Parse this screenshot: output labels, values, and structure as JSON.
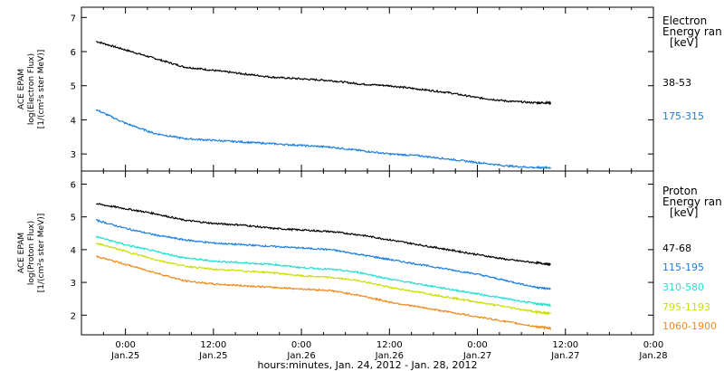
{
  "chart_data": [
    {
      "type": "line",
      "panel": "top",
      "ylabel_lines": [
        "ACE EPAM",
        "log(Electron Flux)",
        "[1/(cm²s ster MeV)]"
      ],
      "ylim": [
        2.5,
        7.3
      ],
      "yticks": [
        3,
        4,
        5,
        6,
        7
      ],
      "legend_title": [
        "Electron",
        "Energy ran",
        "[keV]"
      ],
      "grid": false,
      "series": [
        {
          "name": "38-53",
          "color": "#000000",
          "x": [
            -4,
            0,
            4,
            8,
            12,
            16,
            20,
            24,
            28,
            32,
            36,
            40,
            44,
            48,
            52,
            56,
            58
          ],
          "y": [
            6.3,
            6.05,
            5.8,
            5.55,
            5.45,
            5.35,
            5.25,
            5.2,
            5.15,
            5.05,
            5.0,
            4.9,
            4.8,
            4.65,
            4.55,
            4.5,
            4.5
          ]
        },
        {
          "name": "175-315",
          "color": "#1a7fe0",
          "x": [
            -4,
            0,
            4,
            8,
            12,
            16,
            20,
            24,
            28,
            32,
            36,
            40,
            44,
            48,
            52,
            56,
            58
          ],
          "y": [
            4.3,
            3.9,
            3.6,
            3.45,
            3.4,
            3.35,
            3.3,
            3.25,
            3.2,
            3.1,
            3.0,
            2.95,
            2.85,
            2.75,
            2.65,
            2.6,
            2.6
          ]
        }
      ]
    },
    {
      "type": "line",
      "panel": "bottom",
      "ylabel_lines": [
        "ACE EPAM",
        "log(Proton Flux)",
        "[1/(cm²s ster MeV)]"
      ],
      "ylim": [
        1.4,
        6.4
      ],
      "yticks": [
        2,
        3,
        4,
        5,
        6
      ],
      "legend_title": [
        "Proton",
        "Energy ran",
        "[keV]"
      ],
      "grid": false,
      "series": [
        {
          "name": "47-68",
          "color": "#000000",
          "x": [
            -4,
            0,
            4,
            8,
            12,
            16,
            20,
            24,
            28,
            32,
            36,
            40,
            44,
            48,
            52,
            56,
            58
          ],
          "y": [
            5.4,
            5.25,
            5.1,
            4.9,
            4.8,
            4.75,
            4.65,
            4.6,
            4.55,
            4.45,
            4.3,
            4.15,
            4.0,
            3.85,
            3.7,
            3.6,
            3.55
          ]
        },
        {
          "name": "115-195",
          "color": "#1a7fe0",
          "x": [
            -4,
            0,
            4,
            8,
            12,
            16,
            20,
            24,
            28,
            32,
            36,
            40,
            44,
            48,
            52,
            56,
            58
          ],
          "y": [
            4.9,
            4.65,
            4.45,
            4.3,
            4.2,
            4.15,
            4.1,
            4.05,
            4.0,
            3.85,
            3.7,
            3.55,
            3.4,
            3.25,
            3.05,
            2.85,
            2.8
          ]
        },
        {
          "name": "310-580",
          "color": "#20e0d0",
          "x": [
            -4,
            0,
            4,
            8,
            12,
            16,
            20,
            24,
            28,
            32,
            36,
            40,
            44,
            48,
            52,
            56,
            58
          ],
          "y": [
            4.4,
            4.15,
            3.95,
            3.75,
            3.65,
            3.6,
            3.55,
            3.45,
            3.4,
            3.3,
            3.1,
            2.95,
            2.8,
            2.65,
            2.5,
            2.35,
            2.3
          ]
        },
        {
          "name": "795-1193",
          "color": "#c8e000",
          "x": [
            -4,
            0,
            4,
            8,
            12,
            16,
            20,
            24,
            28,
            32,
            36,
            40,
            44,
            48,
            52,
            56,
            58
          ],
          "y": [
            4.2,
            3.95,
            3.7,
            3.5,
            3.4,
            3.35,
            3.3,
            3.2,
            3.15,
            3.05,
            2.85,
            2.7,
            2.55,
            2.4,
            2.25,
            2.1,
            2.05
          ]
        },
        {
          "name": "1060-1900",
          "color": "#f08a1c",
          "x": [
            -4,
            0,
            4,
            8,
            12,
            16,
            20,
            24,
            28,
            32,
            36,
            40,
            44,
            48,
            52,
            56,
            58
          ],
          "y": [
            3.8,
            3.55,
            3.3,
            3.05,
            2.95,
            2.9,
            2.85,
            2.8,
            2.75,
            2.6,
            2.4,
            2.25,
            2.1,
            1.95,
            1.8,
            1.65,
            1.6
          ]
        }
      ]
    }
  ],
  "x_axis": {
    "xlim": [
      -6,
      72
    ],
    "ticks": [
      {
        "x": 0,
        "time": "0:00",
        "date": "Jan.25"
      },
      {
        "x": 12,
        "time": "12:00",
        "date": "Jan.25"
      },
      {
        "x": 24,
        "time": "0:00",
        "date": "Jan.26"
      },
      {
        "x": 36,
        "time": "12:00",
        "date": "Jan.26"
      },
      {
        "x": 48,
        "time": "0:00",
        "date": "Jan.27"
      },
      {
        "x": 60,
        "time": "12:00",
        "date": "Jan.27"
      },
      {
        "x": 72,
        "time": "0:00",
        "date": "Jan.28"
      }
    ],
    "title": "hours:minutes, Jan. 24, 2012 - Jan. 28, 2012"
  }
}
